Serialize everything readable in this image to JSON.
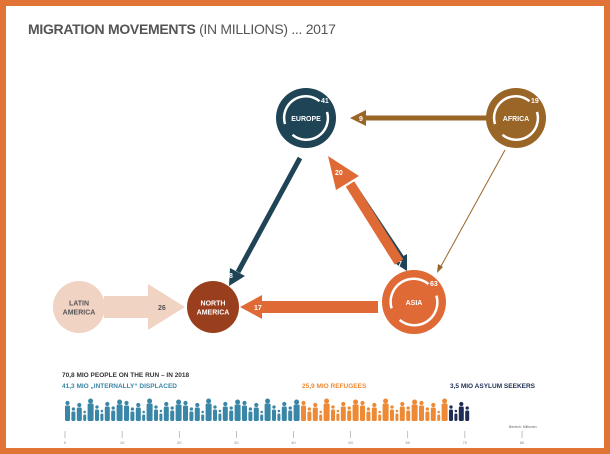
{
  "title": {
    "bold": "MIGRATION MOVEMENTS",
    "rest": " (IN MILLIONS) ... 2017"
  },
  "colors": {
    "europe": "#1e4456",
    "africa": "#9a6628",
    "asia": "#e06a35",
    "north_america": "#9a3f1e",
    "latin_america": "#f1d3c4",
    "internally_displaced": "#3a86a6",
    "refugees": "#ee8a35",
    "asylum": "#1e2d55",
    "frame": "#e07335"
  },
  "regions": [
    {
      "id": "europe",
      "label": "EUROPE",
      "value": "41"
    },
    {
      "id": "africa",
      "label": "AFRICA",
      "value": "19"
    },
    {
      "id": "asia",
      "label": "ASIA",
      "value": "63"
    },
    {
      "id": "north_america",
      "label": "NORTH AMERICA"
    },
    {
      "id": "latin_america",
      "label": "LATIN AMERICA"
    }
  ],
  "flows": [
    {
      "from": "africa",
      "to": "europe",
      "value": "9"
    },
    {
      "from": "africa",
      "to": "asia",
      "value": ""
    },
    {
      "from": "europe",
      "to": "north_america",
      "value": "8"
    },
    {
      "from": "asia",
      "to": "europe",
      "value": "20"
    },
    {
      "from": "europe",
      "to": "asia",
      "value": "7"
    },
    {
      "from": "asia",
      "to": "north_america",
      "value": "17"
    },
    {
      "from": "latin_america",
      "to": "north_america",
      "value": "26"
    }
  ],
  "bottom": {
    "headline": "70,8 MIO PEOPLE ON THE RUN –  IN 2018",
    "internally": "41,3 MIO „INTERNALLY“ DISPLACED",
    "refugees": "25,9 MIO REFUGEES",
    "asylum": "3,5 MIO ASYLUM SEEKERS",
    "axis_note": "Bereich: Millionen",
    "ticks": [
      "0",
      "10",
      "20",
      "30",
      "40",
      "50",
      "60",
      "70",
      "80"
    ],
    "segments": {
      "internally": 41.3,
      "refugees": 25.9,
      "asylum": 3.5
    }
  }
}
